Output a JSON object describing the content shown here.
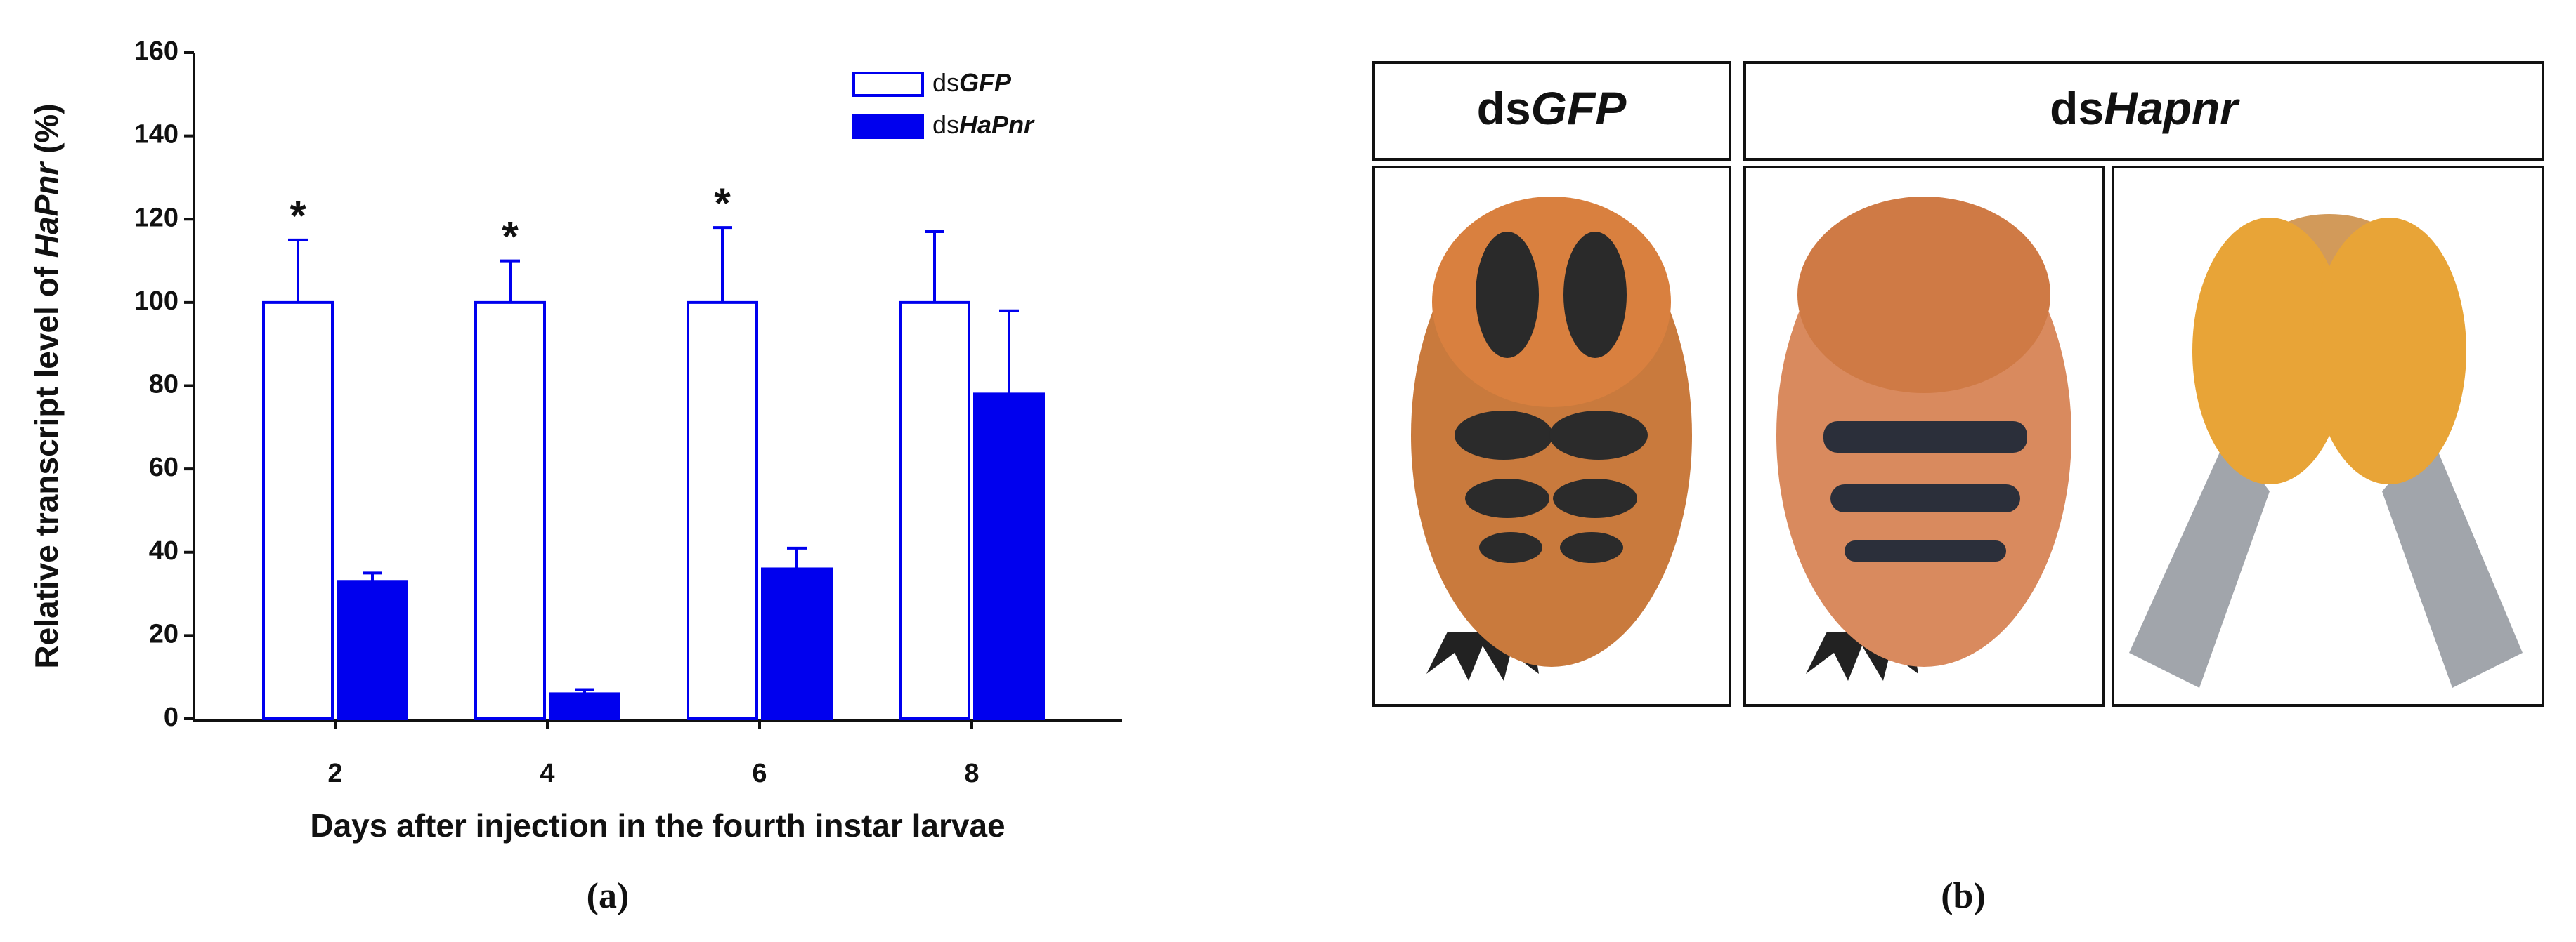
{
  "chart_data": {
    "type": "bar",
    "y_label": [
      "Relative transcript level of ",
      "HaPnr",
      " (%)"
    ],
    "x_label": "Days after injection in the fourth instar larvae",
    "categories": [
      "2",
      "4",
      "6",
      "8"
    ],
    "series": [
      {
        "name": [
          "ds",
          "GFP"
        ],
        "color": "#0000ee",
        "fill": "#ffffff",
        "values": [
          100,
          100,
          100,
          100
        ],
        "errors": [
          15,
          10,
          18,
          17
        ]
      },
      {
        "name": [
          "ds",
          "HaPnr"
        ],
        "color": "#0000ee",
        "fill": "#0000ee",
        "values": [
          33,
          6,
          36,
          78
        ],
        "errors": [
          2,
          1,
          5,
          20
        ]
      }
    ],
    "significance": [
      "*",
      "*",
      "*",
      null
    ],
    "ylim": [
      0,
      160
    ],
    "yticks": [
      0,
      20,
      40,
      60,
      80,
      100,
      120,
      140,
      160
    ],
    "legend": "upper right"
  },
  "figure": {
    "panel_a": "(a)",
    "panel_b": "(b)",
    "header_control": [
      "ds",
      "GFP"
    ],
    "header_treatment": [
      "ds",
      "Hapnr"
    ]
  }
}
